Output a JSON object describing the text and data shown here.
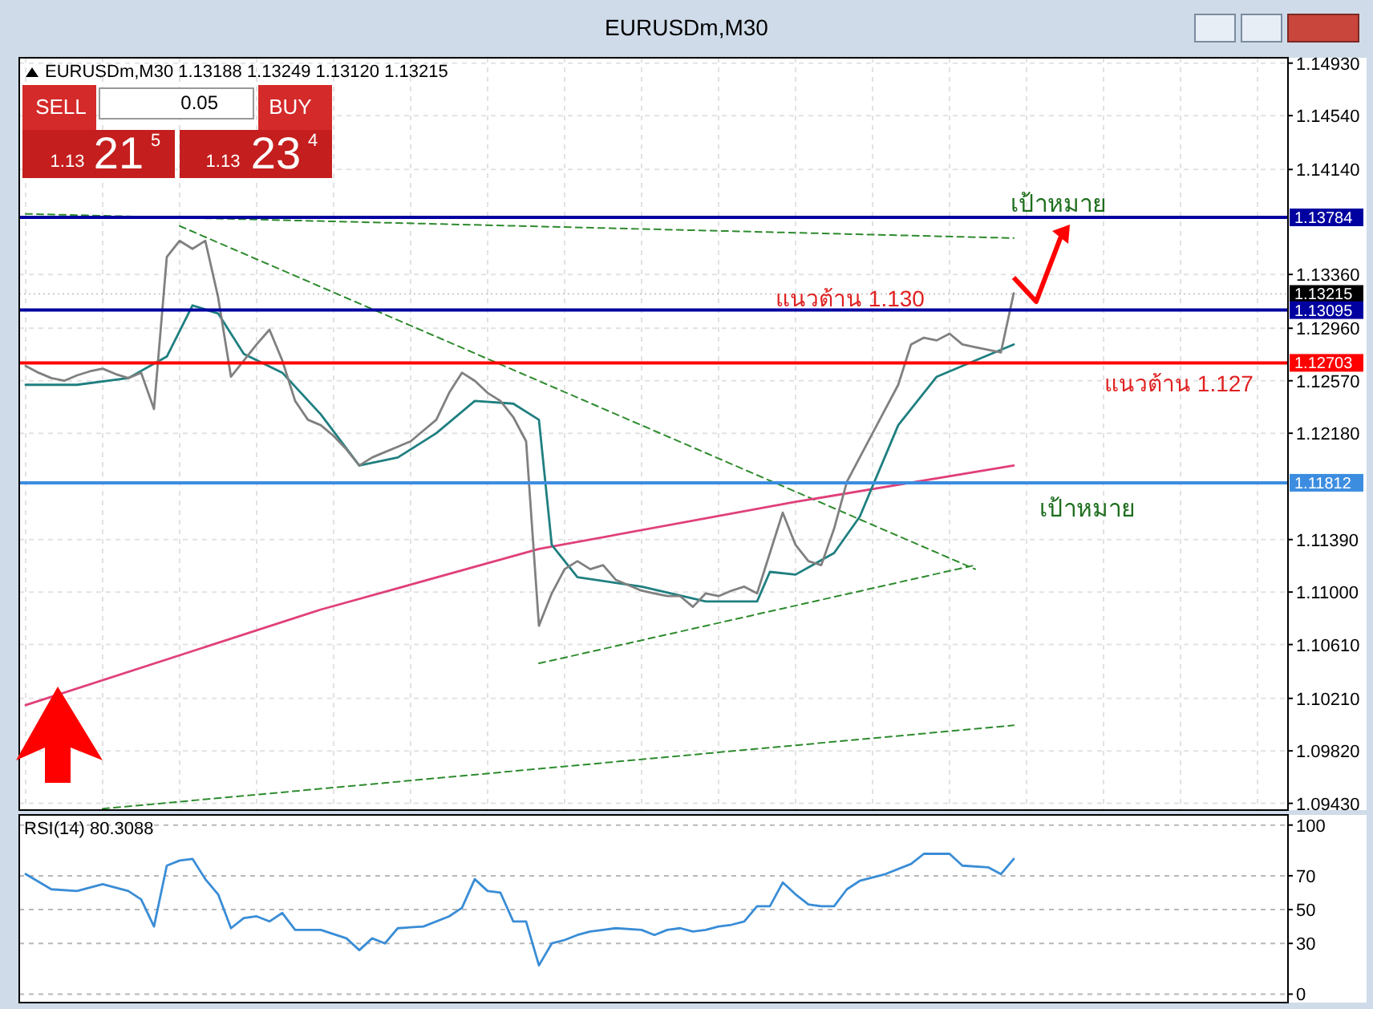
{
  "chart_data": [
    {
      "type": "line",
      "title": "EURUSDm,M30",
      "subtitle": "EURUSDm,M30  1.13188 1.13249 1.13120 1.13215",
      "categories": [
        null,
        null,
        null,
        null,
        null,
        null,
        null,
        null,
        null,
        null,
        null,
        null,
        null,
        null,
        null,
        null,
        null,
        null,
        null,
        null,
        null,
        null,
        null,
        null,
        null,
        null,
        null,
        null,
        null,
        null,
        null,
        null,
        null,
        null,
        null,
        null,
        null,
        null,
        null,
        null,
        null,
        null,
        null,
        null,
        null,
        null,
        null,
        null,
        null,
        null,
        null,
        null,
        null,
        null,
        null,
        null,
        null,
        null,
        null,
        null,
        null,
        null,
        null,
        null,
        null,
        null,
        null,
        null,
        null,
        null,
        null,
        null,
        null,
        null,
        null,
        null,
        null,
        null
      ],
      "ylim": [
        1.0938,
        1.1497
      ],
      "yticks": [
        {
          "value": 1.1493,
          "label": "1.14930"
        },
        {
          "value": 1.1454,
          "label": "1.14540"
        },
        {
          "value": 1.1414,
          "label": "1.14140"
        },
        {
          "value": 1.1336,
          "label": "1.13360"
        },
        {
          "value": 1.1296,
          "label": "1.12960"
        },
        {
          "value": 1.1257,
          "label": "1.12570"
        },
        {
          "value": 1.1218,
          "label": "1.12180"
        },
        {
          "value": 1.1139,
          "label": "1.11390"
        },
        {
          "value": 1.11,
          "label": "1.11000"
        },
        {
          "value": 1.1061,
          "label": "1.10610"
        },
        {
          "value": 1.1021,
          "label": "1.10210"
        },
        {
          "value": 1.0982,
          "label": "1.09820"
        },
        {
          "value": 1.0943,
          "label": "1.09430"
        }
      ],
      "grid": true,
      "series": [
        {
          "color": "#2e8b2e",
          "line_style": "dashed",
          "values": [
            1.1381,
            null,
            null,
            null,
            null,
            null,
            null,
            null,
            null,
            null,
            null,
            null,
            null,
            null,
            null,
            null,
            null,
            null,
            null,
            null,
            null,
            null,
            null,
            null,
            null,
            null,
            null,
            null,
            null,
            null,
            null,
            null,
            null,
            null,
            null,
            null,
            null,
            null,
            null,
            null,
            null,
            null,
            null,
            null,
            null,
            null,
            null,
            null,
            null,
            null,
            null,
            null,
            null,
            null,
            null,
            null,
            null,
            null,
            null,
            null,
            null,
            null,
            null,
            null,
            null,
            null,
            null,
            null,
            null,
            null,
            null,
            null,
            null,
            null,
            null,
            null,
            null,
            1.1363
          ]
        },
        {
          "color": "#2e8b2e",
          "line_style": "dashed",
          "values": [
            null,
            null,
            null,
            null,
            null,
            null,
            1.0939,
            null,
            null,
            null,
            null,
            null,
            null,
            null,
            null,
            null,
            null,
            null,
            null,
            null,
            null,
            null,
            null,
            null,
            null,
            null,
            null,
            null,
            null,
            null,
            null,
            null,
            null,
            null,
            null,
            null,
            null,
            null,
            null,
            null,
            null,
            null,
            null,
            null,
            null,
            null,
            null,
            null,
            null,
            null,
            null,
            null,
            null,
            null,
            null,
            null,
            null,
            null,
            null,
            null,
            null,
            null,
            null,
            null,
            null,
            null,
            null,
            null,
            null,
            null,
            null,
            null,
            null,
            null,
            null,
            null,
            null,
            1.1001
          ]
        },
        {
          "color": "#2e8b2e",
          "line_style": "dashed",
          "values": [
            null,
            null,
            null,
            null,
            null,
            null,
            null,
            null,
            null,
            null,
            null,
            null,
            1.1372,
            null,
            null,
            null,
            null,
            null,
            null,
            null,
            null,
            null,
            null,
            null,
            null,
            null,
            null,
            null,
            null,
            null,
            null,
            null,
            null,
            null,
            null,
            null,
            null,
            null,
            null,
            null,
            null,
            null,
            null,
            null,
            null,
            null,
            null,
            null,
            null,
            null,
            null,
            null,
            null,
            null,
            null,
            null,
            null,
            null,
            null,
            null,
            null,
            null,
            null,
            null,
            null,
            null,
            null,
            null,
            null,
            null,
            null,
            null,
            null,
            null,
            1.1117,
            null,
            null,
            null
          ]
        },
        {
          "color": "#2e8b2e",
          "line_style": "dashed",
          "values": [
            null,
            null,
            null,
            null,
            null,
            null,
            null,
            null,
            null,
            null,
            null,
            null,
            null,
            null,
            null,
            null,
            null,
            null,
            null,
            null,
            null,
            null,
            null,
            null,
            null,
            null,
            null,
            null,
            null,
            null,
            null,
            null,
            null,
            null,
            null,
            null,
            null,
            null,
            null,
            null,
            1.1047,
            null,
            null,
            null,
            null,
            null,
            null,
            null,
            null,
            null,
            null,
            null,
            null,
            null,
            null,
            null,
            null,
            null,
            null,
            null,
            null,
            null,
            null,
            null,
            null,
            null,
            null,
            null,
            null,
            null,
            null,
            null,
            null,
            null,
            1.112,
            null,
            null,
            null
          ]
        },
        {
          "color": "#e0407a",
          "values": [
            1.1016,
            null,
            null,
            null,
            null,
            null,
            null,
            null,
            null,
            null,
            null,
            null,
            null,
            null,
            null,
            null,
            null,
            null,
            null,
            null,
            null,
            null,
            null,
            1.1087,
            null,
            null,
            null,
            null,
            null,
            null,
            null,
            null,
            null,
            null,
            null,
            null,
            null,
            null,
            null,
            null,
            1.1132,
            null,
            null,
            null,
            null,
            null,
            null,
            null,
            null,
            null,
            null,
            null,
            null,
            null,
            null,
            null,
            null,
            null,
            null,
            null,
            1.1167,
            null,
            null,
            null,
            null,
            null,
            null,
            null,
            null,
            null,
            null,
            null,
            null,
            null,
            null,
            null,
            null,
            1.1194
          ]
        },
        {
          "color": "#1f7f80",
          "values": [
            1.1254,
            null,
            null,
            null,
            1.1254,
            null,
            null,
            null,
            1.1259,
            null,
            null,
            1.1275,
            null,
            1.1313,
            null,
            1.1307,
            null,
            1.1277,
            null,
            null,
            1.1263,
            null,
            null,
            1.1232,
            null,
            null,
            1.1194,
            null,
            null,
            1.12,
            null,
            null,
            1.1218,
            null,
            null,
            1.1242,
            null,
            null,
            1.124,
            null,
            1.1228,
            1.1135,
            null,
            1.1111,
            null,
            null,
            null,
            null,
            1.1104,
            null,
            null,
            null,
            null,
            1.1093,
            null,
            null,
            null,
            1.1093,
            1.1115,
            null,
            1.1113,
            null,
            null,
            1.1129,
            null,
            1.1156,
            null,
            null,
            1.1224,
            null,
            null,
            1.126,
            null,
            null,
            1.1272,
            null,
            null,
            1.1284
          ]
        },
        {
          "color": "#808080",
          "values": [
            1.1268,
            1.1263,
            1.1259,
            1.1257,
            1.1261,
            1.1264,
            1.1266,
            1.1262,
            1.1259,
            1.1263,
            1.1236,
            1.1349,
            1.1361,
            1.1355,
            1.1361,
            1.1319,
            1.126,
            1.1272,
            1.1284,
            1.1295,
            1.1272,
            1.1242,
            1.1228,
            1.1224,
            1.1216,
            1.1206,
            1.1194,
            1.12,
            1.1204,
            1.1208,
            1.1212,
            1.122,
            1.1228,
            1.1248,
            1.1263,
            1.1257,
            1.1248,
            1.1242,
            1.123,
            1.1212,
            1.1075,
            1.1099,
            1.1117,
            1.1123,
            1.1117,
            1.112,
            1.1109,
            1.1105,
            1.1101,
            1.1099,
            1.1097,
            1.1097,
            1.1089,
            1.1099,
            1.1097,
            1.1101,
            1.1104,
            1.1099,
            1.1129,
            1.1159,
            1.1135,
            1.1123,
            1.112,
            1.1147,
            1.1182,
            1.12,
            1.1218,
            1.1236,
            1.1254,
            1.1284,
            1.1289,
            1.1287,
            1.1292,
            1.1284,
            1.1282,
            1.128,
            1.1278,
            1.1322
          ]
        }
      ],
      "ref_lines": [
        {
          "axis": "y",
          "value": 1.13784,
          "label": "1.13784",
          "color": "#0000a0"
        },
        {
          "axis": "y",
          "value": 1.13215,
          "label": "1.13215",
          "color": "#000000",
          "line_style": "dotted"
        },
        {
          "axis": "y",
          "value": 1.13095,
          "label": "1.13095",
          "color": "#0000a0"
        },
        {
          "axis": "y",
          "value": 1.12703,
          "label": "1.12703",
          "color": "#ff0000"
        },
        {
          "axis": "y",
          "value": 1.11812,
          "label": "1.11812",
          "color": "#3c8de0"
        }
      ],
      "annotations": [
        "SELL",
        "0.05",
        "BUY",
        "1.13",
        "21",
        "5",
        "1.13",
        "23",
        "4",
        "เป้าหมาย",
        "แนวต้าน 1.130",
        "แนวต้าน 1.127",
        "เป้าหมาย"
      ]
    },
    {
      "type": "line",
      "title": "RSI(14) 80.3088",
      "categories": [
        null,
        null,
        null,
        null,
        null,
        null,
        null,
        null,
        null,
        null,
        null,
        null,
        null,
        null,
        null,
        null,
        null,
        null,
        null,
        null,
        null,
        null,
        null,
        null,
        null,
        null,
        null,
        null,
        null,
        null,
        null,
        null,
        null,
        null,
        null,
        null,
        null,
        null,
        null,
        null,
        null,
        null,
        null,
        null,
        null,
        null,
        null,
        null,
        null,
        null,
        null,
        null,
        null,
        null,
        null,
        null,
        null,
        null,
        null,
        null,
        null,
        null,
        null,
        null,
        null,
        null,
        null,
        null,
        null,
        null,
        null,
        null,
        null,
        null,
        null,
        null,
        null,
        null
      ],
      "ylim": [
        -5,
        106
      ],
      "yticks": [
        0,
        30,
        50,
        70,
        100
      ],
      "grid": "y",
      "series": [
        {
          "color": "#3a8dd6",
          "values": [
            71,
            null,
            62,
            null,
            61,
            null,
            65,
            null,
            61,
            56,
            40,
            76,
            79,
            80,
            68,
            59,
            39,
            45,
            46,
            43,
            48,
            38,
            null,
            38,
            null,
            33,
            26,
            33,
            30,
            39,
            null,
            40,
            null,
            46,
            51,
            68,
            61,
            60,
            43,
            43,
            17,
            30,
            32,
            35,
            37,
            38,
            39,
            null,
            38,
            35,
            38,
            39,
            37,
            38,
            40,
            41,
            43,
            52,
            52,
            66,
            59,
            53,
            52,
            52,
            62,
            67,
            null,
            71,
            null,
            77,
            83,
            null,
            83,
            76,
            null,
            75,
            71,
            80
          ]
        }
      ]
    }
  ]
}
